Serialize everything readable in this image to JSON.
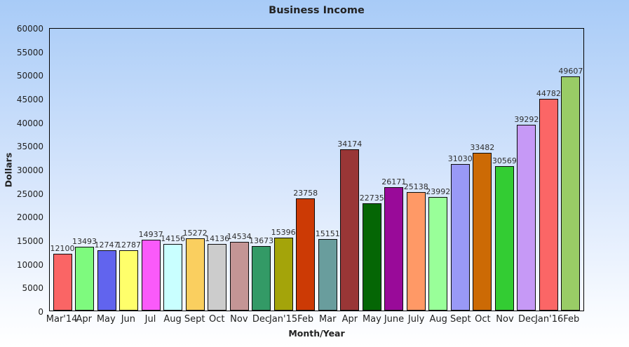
{
  "chart_data": {
    "type": "bar",
    "title": "Business Income",
    "xlabel": "Month/Year",
    "ylabel": "Dollars",
    "ylim": [
      0,
      60000
    ],
    "y_tick_step": 5000,
    "y_ticks": [
      0,
      5000,
      10000,
      15000,
      20000,
      25000,
      30000,
      35000,
      40000,
      45000,
      50000,
      55000,
      60000
    ],
    "grid": false,
    "legend_position": "none",
    "value_labels_shown": true,
    "categories": [
      "Mar'14",
      "Apr",
      "May",
      "Jun",
      "Jul",
      "Aug",
      "Sept",
      "Oct",
      "Nov",
      "Dec",
      "Jan'15",
      "Feb",
      "Mar",
      "Apr",
      "May",
      "June",
      "July",
      "Aug",
      "Sept",
      "Oct",
      "Nov",
      "Dec",
      "Jan'16",
      "Feb"
    ],
    "values": [
      12100,
      13493,
      12747,
      12787,
      14937,
      14156,
      15272,
      14136,
      14534,
      13673,
      15396,
      23758,
      15151,
      34174,
      22735,
      26171,
      25138,
      23992,
      31030,
      33482,
      30569,
      39292,
      44782,
      49607
    ],
    "bar_colors": [
      "#FA6565",
      "#7EFA7E",
      "#6164EE",
      "#FFFF6B",
      "#FA5AFA",
      "#C9FFFF",
      "#FACF5F",
      "#CCCCCC",
      "#C49595",
      "#339A66",
      "#A4A40A",
      "#CC3A05",
      "#699D9D",
      "#993636",
      "#056605",
      "#990A99",
      "#FF9966",
      "#99FF99",
      "#9999F6",
      "#CC6A05",
      "#33CC33",
      "#C699F6",
      "#FB6666",
      "#99CC66"
    ],
    "bar_border_color": "#0a0a0a",
    "background_gradient": [
      "#A8CBF7",
      "#FFFFFF"
    ]
  }
}
